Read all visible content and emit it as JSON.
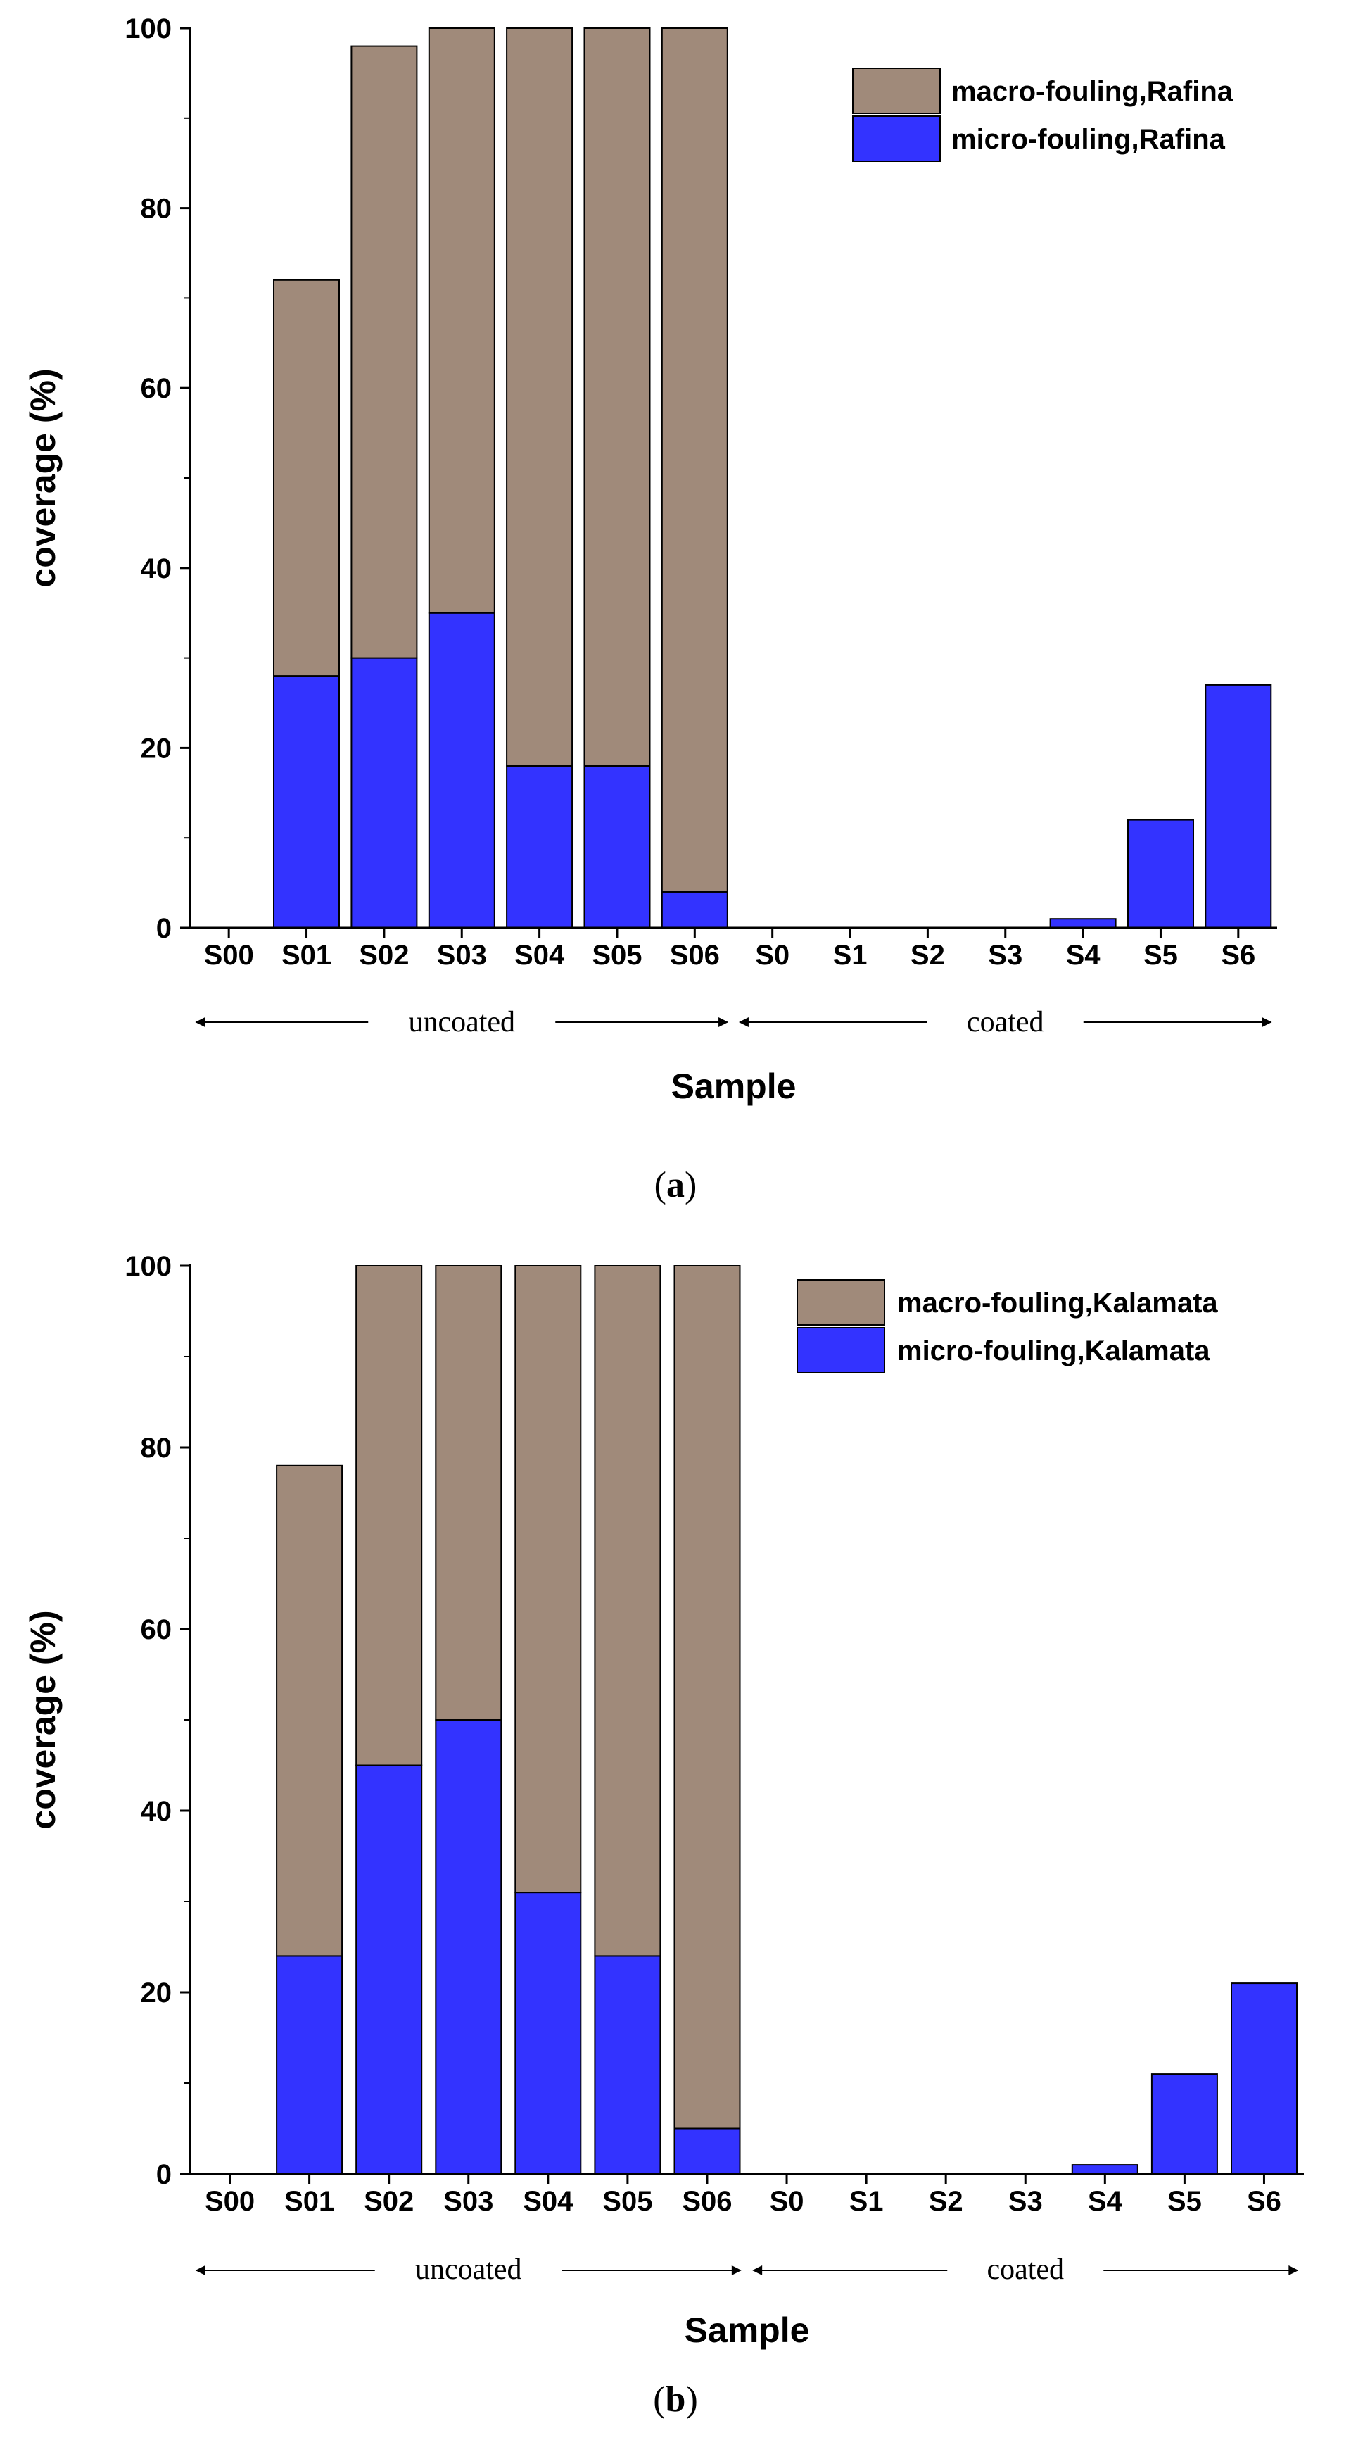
{
  "chart_data": [
    {
      "type": "bar",
      "stacked": true,
      "panel_label": "a",
      "categories": [
        "S00",
        "S01",
        "S02",
        "S03",
        "S04",
        "S05",
        "S06",
        "S0",
        "S1",
        "S2",
        "S3",
        "S4",
        "S5",
        "S6"
      ],
      "series": [
        {
          "name": "micro-fouling,Rafina",
          "color": "#3333ff",
          "values": [
            0,
            28,
            30,
            35,
            18,
            18,
            4,
            0,
            0,
            0,
            0,
            1,
            12,
            27
          ]
        },
        {
          "name": "macro-fouling,Rafina",
          "color": "#a08a7a",
          "values": [
            0,
            44,
            68,
            65,
            82,
            82,
            96,
            0,
            0,
            0,
            0,
            0,
            0,
            0
          ]
        }
      ],
      "legend_order": [
        "macro-fouling,Rafina",
        "micro-fouling,Rafina"
      ],
      "legend_position": "top-right",
      "xlabel": "Sample",
      "ylabel": "coverage (%)",
      "ylim": [
        0,
        100
      ],
      "yticks": [
        0,
        20,
        40,
        60,
        80,
        100
      ],
      "groups": [
        {
          "label": "uncoated",
          "from": "S00",
          "to": "S06"
        },
        {
          "label": "coated",
          "from": "S0",
          "to": "S6"
        }
      ]
    },
    {
      "type": "bar",
      "stacked": true,
      "panel_label": "b",
      "categories": [
        "S00",
        "S01",
        "S02",
        "S03",
        "S04",
        "S05",
        "S06",
        "S0",
        "S1",
        "S2",
        "S3",
        "S4",
        "S5",
        "S6"
      ],
      "series": [
        {
          "name": "micro-fouling,Kalamata",
          "color": "#3333ff",
          "values": [
            0,
            24,
            45,
            50,
            31,
            24,
            5,
            0,
            0,
            0,
            0,
            1,
            11,
            21
          ]
        },
        {
          "name": "macro-fouling,Kalamata",
          "color": "#a08a7a",
          "values": [
            0,
            54,
            55,
            50,
            69,
            76,
            95,
            0,
            0,
            0,
            0,
            0,
            0,
            0
          ]
        }
      ],
      "legend_order": [
        "macro-fouling,Kalamata",
        "micro-fouling,Kalamata"
      ],
      "legend_position": "top-right",
      "xlabel": "Sample",
      "ylabel": "coverage (%)",
      "ylim": [
        0,
        100
      ],
      "yticks": [
        0,
        20,
        40,
        60,
        80,
        100
      ],
      "groups": [
        {
          "label": "uncoated",
          "from": "S00",
          "to": "S06"
        },
        {
          "label": "coated",
          "from": "S0",
          "to": "S6"
        }
      ]
    }
  ]
}
